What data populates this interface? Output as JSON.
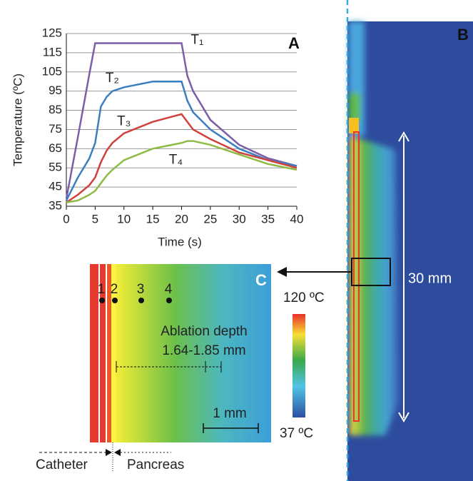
{
  "chart_data": {
    "type": "line",
    "y_label": "Temperature (ºC)",
    "x_label": "Time (s)",
    "panel_label": "A",
    "x": [
      0,
      2,
      4,
      5,
      6,
      7,
      8,
      10,
      15,
      20,
      21,
      22,
      25,
      30,
      35,
      40
    ],
    "series": [
      {
        "name": "T₁",
        "color": "#7b5ea7",
        "values": [
          39,
          71,
          104,
          120,
          120,
          120,
          120,
          120,
          120,
          120,
          103,
          95,
          80,
          67,
          60,
          56
        ]
      },
      {
        "name": "T₂",
        "color": "#3a7fc0",
        "values": [
          38,
          50,
          60,
          68,
          87,
          92,
          95,
          97,
          100,
          100,
          90,
          84,
          75,
          65,
          59,
          56
        ]
      },
      {
        "name": "T₃",
        "color": "#d0413c",
        "values": [
          37,
          41,
          46,
          50,
          58,
          64,
          68,
          73,
          79,
          83,
          79,
          75,
          70,
          63,
          59,
          55
        ]
      },
      {
        "name": "T₄",
        "color": "#8dbb44",
        "values": [
          37,
          38,
          41,
          43,
          47,
          51,
          54,
          59,
          65,
          68,
          69,
          69,
          67,
          62,
          57,
          54
        ]
      }
    ],
    "xlim": [
      0,
      40
    ],
    "xticks": [
      0,
      5,
      10,
      15,
      20,
      25,
      30,
      35,
      40
    ],
    "ylim": [
      35,
      125
    ],
    "yticks": [
      35,
      45,
      55,
      65,
      75,
      85,
      95,
      105,
      115,
      125
    ],
    "grid": true
  },
  "panel_b": {
    "label": "B",
    "length": "30 mm"
  },
  "panel_c": {
    "label": "C",
    "points": [
      "1",
      "2",
      "3",
      "4"
    ],
    "ablation_title": "Ablation depth",
    "ablation_range": "1.64-1.85 mm",
    "scale": "1 mm",
    "cbar_max": "120 ºC",
    "cbar_min": "37 ºC",
    "left_region": "Catheter",
    "right_region": "Pancreas"
  }
}
